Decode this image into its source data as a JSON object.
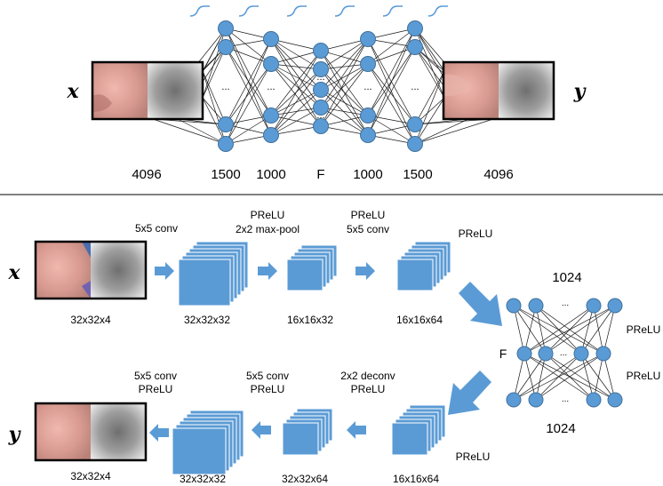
{
  "colors": {
    "node_fill": "#5b9bd5",
    "node_stroke": "#41719c",
    "arrow_fill": "#5b9bd5",
    "wave": "#5b9bd5",
    "line": "#1a1a1a",
    "image_skin": "#d9a39a",
    "image_gray": "#9a9a9a"
  },
  "top": {
    "input_var": "x",
    "output_var": "y",
    "layer_sizes": [
      "4096",
      "1500",
      "1000",
      "F",
      "1000",
      "1500",
      "4096"
    ],
    "ellipsis": "..."
  },
  "bottom": {
    "input_var": "x",
    "output_var": "y",
    "encoder": [
      {
        "op": "5x5 conv",
        "size": "32x32x4"
      },
      {
        "op_line1": "",
        "op_line2": "5x5 conv",
        "size": "32x32x32"
      }
    ],
    "labels": {
      "input_size": "32x32x4",
      "enc_op1": "5x5 conv",
      "enc_out1": "32x32x32",
      "enc_op2_line1": "PReLU",
      "enc_op2_line2": "2x2 max-pool",
      "enc_out2": "16x16x32",
      "enc_op3_line1": "PReLU",
      "enc_op3_line2": "5x5 conv",
      "enc_out3": "16x16x64",
      "enc_prelu": "PReLU",
      "fc_top": "1024",
      "fc_bottom": "1024",
      "fc_middle": "F",
      "fc_prelu1": "PReLU",
      "fc_prelu2": "PReLU",
      "dec_op1_line1": "2x2 deconv",
      "dec_op1_line2": "PReLU",
      "dec_in_size": "16x16x64",
      "dec_prelu": "PReLU",
      "dec_op2_line1": "5x5 conv",
      "dec_op2_line2": "PReLU",
      "dec_out2": "32x32x64",
      "dec_op3_line1": "5x5 conv",
      "dec_op3_line2": "PReLU",
      "dec_out3": "32x32x32",
      "output_size": "32x32x4",
      "ellipsis": "..."
    }
  }
}
